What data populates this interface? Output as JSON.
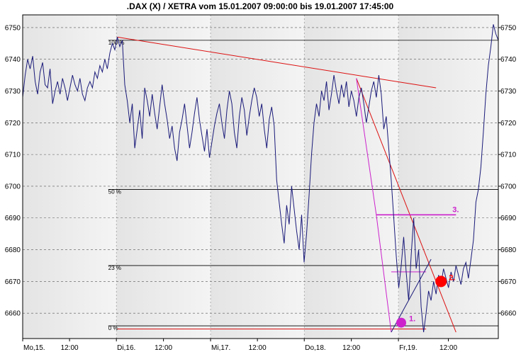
{
  "chart_data": {
    "type": "line",
    "title": ".DAX (X) / XETRA vom 15.01.2007 09:00:00 bis 19.01.2007 17:45:00",
    "xlabel": "",
    "ylabel": "",
    "ylim": [
      6652,
      6754
    ],
    "y_ticks": [
      6660,
      6670,
      6680,
      6690,
      6700,
      6710,
      6720,
      6730,
      6740,
      6750
    ],
    "x_ticks": [
      "Mo,15.",
      "12:00",
      "Di,16.",
      "12:00",
      "Mi,17.",
      "12:00",
      "Do,18.",
      "12:00",
      "Fr,19.",
      "12:00"
    ],
    "grid": true,
    "colors": {
      "price": "#1a1a7a",
      "trend": "#dd1111",
      "fib_line": "#cc22cc",
      "marker2": "#ff0000",
      "bands": [
        "#f4f4f4",
        "#e4e4e4"
      ]
    },
    "series": [
      {
        "values": [
          6728,
          6735,
          6740,
          6737,
          6741,
          6733,
          6729,
          6736,
          6739,
          6732,
          6731,
          6737,
          6726,
          6730,
          6733,
          6729,
          6734,
          6731,
          6727,
          6731,
          6735,
          6732,
          6730,
          6734,
          6729,
          6727,
          6731,
          6733,
          6731,
          6736,
          6734,
          6738,
          6736,
          6740,
          6737,
          6742,
          6745,
          6743,
          6747,
          6744,
          6746,
          6732,
          6727,
          6720,
          6726,
          6712,
          6718,
          6724,
          6715,
          6731,
          6727,
          6722,
          6729,
          6723,
          6718,
          6725,
          6732,
          6726,
          6721,
          6715,
          6719,
          6712,
          6708,
          6717,
          6721,
          6726,
          6719,
          6712,
          6717,
          6723,
          6728,
          6721,
          6716,
          6711,
          6718,
          6709,
          6714,
          6719,
          6723,
          6726,
          6720,
          6715,
          6724,
          6730,
          6726,
          6717,
          6712,
          6722,
          6728,
          6724,
          6716,
          6722,
          6727,
          6731,
          6728,
          6722,
          6726,
          6718,
          6712,
          6721,
          6725,
          6719,
          6702,
          6695,
          6688,
          6682,
          6694,
          6688,
          6700,
          6693,
          6686,
          6680,
          6691,
          6676,
          6685,
          6697,
          6710,
          6720,
          6726,
          6722,
          6730,
          6727,
          6733,
          6724,
          6729,
          6735,
          6730,
          6726,
          6732,
          6728,
          6733,
          6725,
          6730,
          6727,
          6722,
          6728,
          6731,
          6726,
          6720,
          6725,
          6730,
          6733,
          6728,
          6735,
          6729,
          6718,
          6722,
          6712,
          6702,
          6690,
          6678,
          6668,
          6675,
          6684,
          6673,
          6664,
          6678,
          6690,
          6674,
          6680,
          6662,
          6654,
          6660,
          6667,
          6664,
          6670,
          6666,
          6672,
          6669,
          6674,
          6671,
          6668,
          6673,
          6670,
          6675,
          6672,
          6669,
          6674,
          6676,
          6671,
          6677,
          6683,
          6695,
          6699,
          6706,
          6717,
          6729,
          6738,
          6744,
          6751,
          6748,
          6746
        ]
      }
    ],
    "fib_levels": [
      {
        "label": "100 %",
        "value": 6746
      },
      {
        "label": "50 %",
        "value": 6699
      },
      {
        "label": "23 %",
        "value": 6675
      },
      {
        "label": "0 %",
        "value": 6656
      }
    ],
    "markers": [
      {
        "label": "1.",
        "color": "#cc22cc",
        "x_index": 152,
        "value": 6657
      },
      {
        "label": "2.",
        "color": "#ff0000",
        "x_index": 168,
        "value": 6670
      },
      {
        "label": "3.",
        "color": "#cc22cc",
        "x_index": 172,
        "value": 6691
      }
    ]
  }
}
